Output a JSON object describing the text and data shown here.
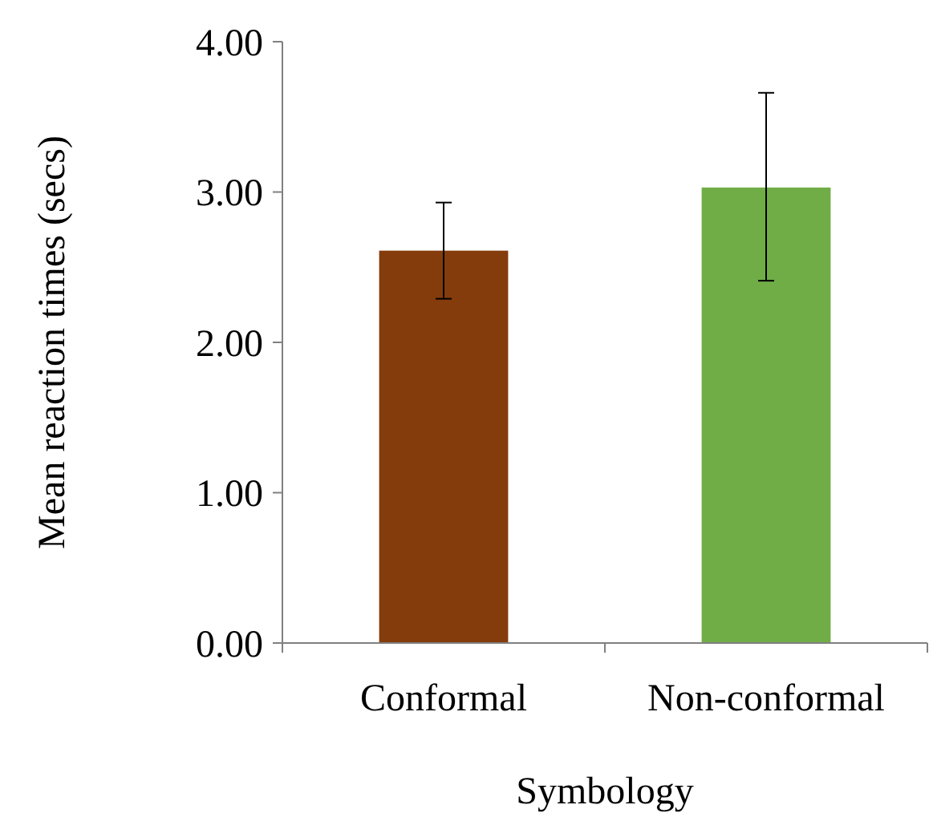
{
  "chart_data": {
    "type": "bar",
    "xlabel": "Symbology",
    "ylabel": "Mean reaction times (secs)",
    "categories": [
      "Conformal",
      "Non-conformal"
    ],
    "values": [
      2.61,
      3.03
    ],
    "colors": [
      "#843c0c",
      "#70ad47"
    ],
    "errors": [
      [
        2.29,
        2.93
      ],
      [
        2.41,
        3.66
      ]
    ],
    "ylim": [
      0,
      4
    ],
    "yticks": [
      {
        "value": 0,
        "label": "0.00"
      },
      {
        "value": 1,
        "label": "1.00"
      },
      {
        "value": 2,
        "label": "2.00"
      },
      {
        "value": 3,
        "label": "3.00"
      },
      {
        "value": 4,
        "label": "4.00"
      }
    ],
    "grid": false
  }
}
